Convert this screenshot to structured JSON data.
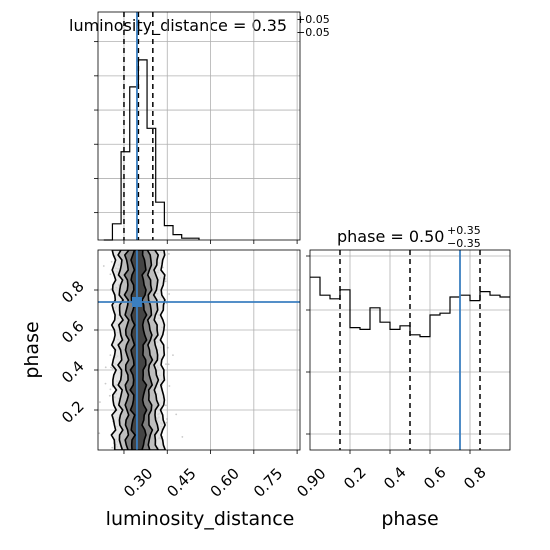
{
  "chart_data": [
    {
      "type": "histogram",
      "panel": "top-left",
      "parameter": "luminosity_distance",
      "title": {
        "main": "luminosity_distance = 0.35",
        "sup": "+0.05",
        "sub": "−0.05"
      },
      "bin_edges": [
        0.23,
        0.26,
        0.29,
        0.32,
        0.35,
        0.38,
        0.41,
        0.44,
        0.47,
        0.5,
        0.53,
        0.56
      ],
      "counts": [
        0,
        0.09,
        0.49,
        0.85,
        1.0,
        0.62,
        0.21,
        0.08,
        0.03,
        0.01,
        0.01
      ],
      "quantiles": [
        0.3,
        0.35,
        0.4
      ],
      "truth": 0.345,
      "xlim": [
        0.21,
        0.91
      ],
      "xticks": [
        0.3,
        0.45,
        0.6,
        0.75,
        0.9
      ],
      "grid": true,
      "y_tick_labels_shown": false
    },
    {
      "type": "scatter",
      "subtype": "2d-density-contour",
      "panel": "bottom-left",
      "x_parameter": "luminosity_distance",
      "y_parameter": "phase",
      "xlabel": "luminosity_distance",
      "ylabel": "phase",
      "xlim": [
        0.21,
        0.91
      ],
      "ylim": [
        0.0,
        1.0
      ],
      "xticks": [
        0.3,
        0.45,
        0.6,
        0.75,
        0.9
      ],
      "xtick_labels": [
        "0.30",
        "0.45",
        "0.60",
        "0.75",
        "0.90"
      ],
      "yticks": [
        0.2,
        0.4,
        0.6,
        0.8
      ],
      "ytick_labels": [
        "0.2",
        "0.4",
        "0.6",
        "0.8"
      ],
      "x_center": 0.35,
      "x_spread": 0.04,
      "truth": {
        "x": 0.345,
        "y": 0.74
      },
      "grid": true
    },
    {
      "type": "histogram",
      "panel": "bottom-right",
      "parameter": "phase",
      "title": {
        "main": "phase = 0.50",
        "sup": "+0.35",
        "sub": "−0.35"
      },
      "bin_edges": [
        0.0,
        0.05,
        0.1,
        0.15,
        0.2,
        0.25,
        0.3,
        0.35,
        0.4,
        0.45,
        0.5,
        0.55,
        0.6,
        0.65,
        0.7,
        0.75,
        0.8,
        0.85,
        0.9,
        0.95,
        1.0
      ],
      "counts": [
        0.96,
        0.86,
        0.84,
        0.89,
        0.68,
        0.67,
        0.79,
        0.71,
        0.67,
        0.69,
        0.64,
        0.63,
        0.75,
        0.76,
        0.85,
        0.86,
        0.83,
        0.88,
        0.86,
        0.85
      ],
      "quantiles": [
        0.15,
        0.5,
        0.85
      ],
      "truth": 0.75,
      "xlabel": "phase",
      "xlim": [
        0.0,
        1.0
      ],
      "xticks": [
        0.2,
        0.4,
        0.6,
        0.8
      ],
      "xtick_labels": [
        "0.2",
        "0.4",
        "0.6",
        "0.8"
      ],
      "grid": true,
      "y_tick_labels_shown": false
    }
  ],
  "colors": {
    "truth_line": "#3b7fc0",
    "histogram_line": "#000000",
    "quantile_line": "#000000",
    "contour_line": "#000000",
    "scatter_point": "#9e9e9e",
    "grid": "#b0b0b0",
    "background": "#ffffff"
  }
}
